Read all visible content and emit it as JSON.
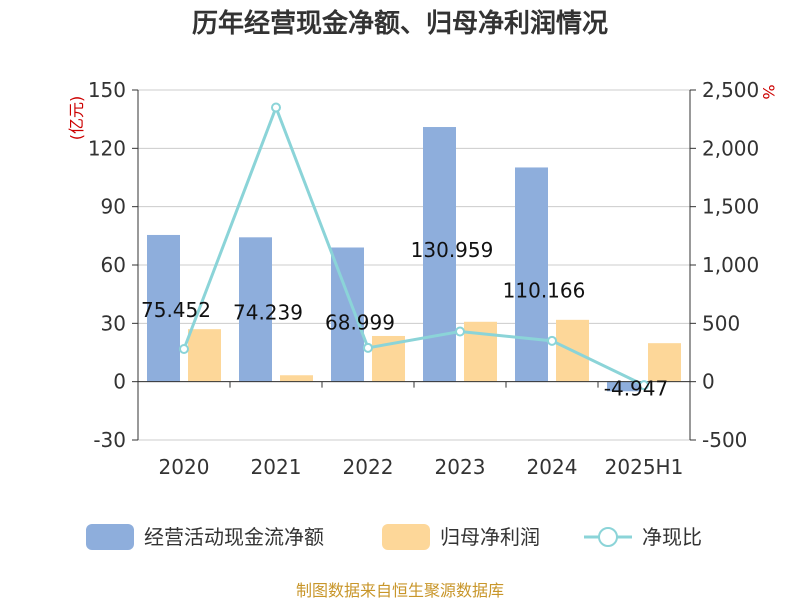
{
  "chart_data": {
    "type": "bar",
    "title": "历年经营现金净额、归母净利润情况",
    "categories": [
      "2020",
      "2021",
      "2022",
      "2023",
      "2024",
      "2025H1"
    ],
    "y_left": {
      "unit": "(亿元)",
      "ylim": [
        -30,
        150
      ],
      "ticks": [
        -30,
        0,
        30,
        60,
        90,
        120,
        150
      ]
    },
    "y_right": {
      "unit": "%",
      "ylim": [
        -500,
        2500
      ],
      "ticks": [
        -500,
        0,
        500,
        1000,
        1500,
        2000,
        2500
      ],
      "tick_labels": [
        "-500",
        "0",
        "500",
        "1,000",
        "1,500",
        "2,000",
        "2,500"
      ]
    },
    "series": [
      {
        "name": "经营活动现金流净额",
        "type": "bar",
        "axis": "left",
        "color": "#8eaedc",
        "values": [
          75.452,
          74.239,
          68.999,
          130.959,
          110.166,
          -4.947
        ],
        "labels": [
          "75.452",
          "74.239",
          "68.999",
          "130.959",
          "110.166",
          "-4.947"
        ]
      },
      {
        "name": "归母净利润",
        "type": "bar",
        "axis": "left",
        "color": "#fdd799",
        "values": [
          27,
          3.3,
          23.5,
          30.8,
          31.8,
          19.8
        ]
      },
      {
        "name": "净现比",
        "type": "line",
        "axis": "right",
        "color": "#8bd4d8",
        "values": [
          280,
          2350,
          290,
          430,
          350,
          -30
        ]
      }
    ],
    "grid": true,
    "legend": "bottom"
  },
  "source": "制图数据来自恒生聚源数据库"
}
